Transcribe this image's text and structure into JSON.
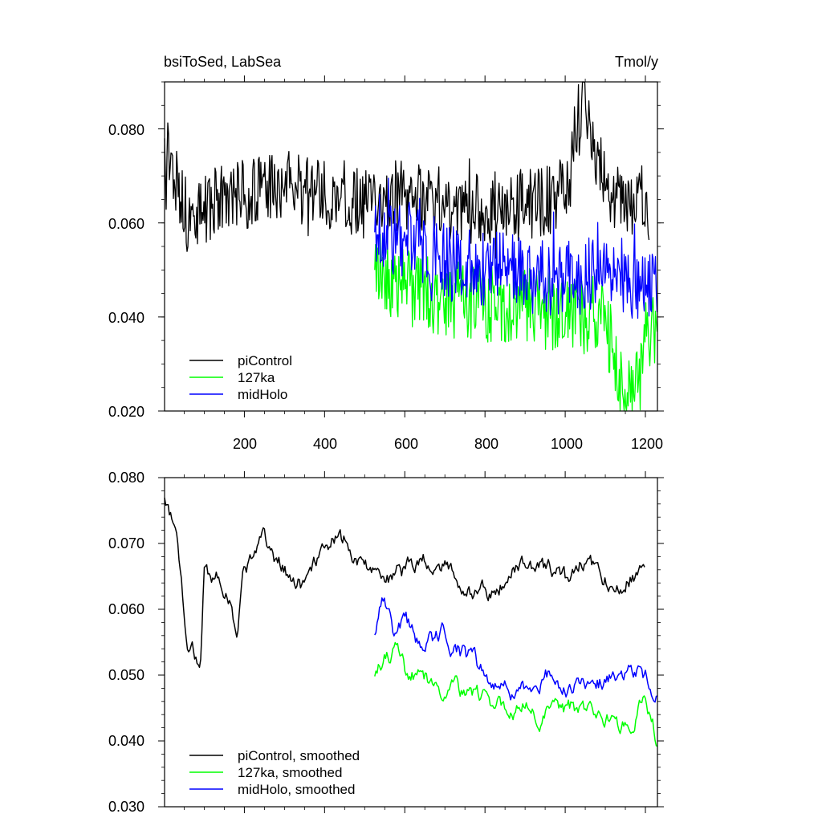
{
  "chart_data": [
    {
      "type": "line",
      "title": "bsiToSed, LabSea",
      "units": "Tmol/y",
      "xlim": [
        1,
        1230
      ],
      "ylim": [
        0.02,
        0.09
      ],
      "xticks": [
        200,
        400,
        600,
        800,
        1000,
        1200
      ],
      "xtick_labels": [
        "200",
        "400",
        "600",
        "800",
        "1000",
        "1200"
      ],
      "yticks": [
        0.02,
        0.04,
        0.06,
        0.08
      ],
      "ytick_labels": [
        "0.020",
        "0.040",
        "0.060",
        "0.080"
      ],
      "legend_position": "bottom-left",
      "series": [
        {
          "name": "piControl",
          "color": "#000000",
          "x_start": 1,
          "x_end": 1210,
          "mean": 0.066,
          "noise": 0.0055,
          "sample_points": [
            [
              1,
              0.078
            ],
            [
              60,
              0.06
            ],
            [
              120,
              0.064
            ],
            [
              200,
              0.066
            ],
            [
              300,
              0.068
            ],
            [
              400,
              0.066
            ],
            [
              500,
              0.064
            ],
            [
              600,
              0.066
            ],
            [
              700,
              0.064
            ],
            [
              800,
              0.063
            ],
            [
              900,
              0.064
            ],
            [
              1000,
              0.066
            ],
            [
              1040,
              0.086
            ],
            [
              1100,
              0.067
            ],
            [
              1210,
              0.064
            ]
          ]
        },
        {
          "name": "127ka",
          "color": "#00ff00",
          "x_start": 525,
          "x_end": 1230,
          "mean": 0.045,
          "noise": 0.006,
          "sample_points": [
            [
              525,
              0.05
            ],
            [
              600,
              0.046
            ],
            [
              700,
              0.044
            ],
            [
              800,
              0.043
            ],
            [
              900,
              0.042
            ],
            [
              1000,
              0.041
            ],
            [
              1100,
              0.04
            ],
            [
              1150,
              0.021
            ],
            [
              1230,
              0.04
            ]
          ]
        },
        {
          "name": "midHolo",
          "color": "#0000ff",
          "x_start": 525,
          "x_end": 1230,
          "mean": 0.05,
          "noise": 0.006,
          "sample_points": [
            [
              525,
              0.058
            ],
            [
              600,
              0.057
            ],
            [
              700,
              0.052
            ],
            [
              800,
              0.05
            ],
            [
              900,
              0.049
            ],
            [
              1000,
              0.048
            ],
            [
              1100,
              0.049
            ],
            [
              1230,
              0.047
            ]
          ]
        }
      ]
    },
    {
      "type": "line",
      "xlim": [
        1,
        1230
      ],
      "ylim": [
        0.03,
        0.08
      ],
      "xticks": [
        200,
        400,
        600,
        800,
        1000,
        1200
      ],
      "yticks": [
        0.03,
        0.04,
        0.05,
        0.06,
        0.07,
        0.08
      ],
      "ytick_labels": [
        "0.030",
        "0.040",
        "0.050",
        "0.060",
        "0.070",
        "0.080"
      ],
      "legend_position": "bottom-left",
      "series": [
        {
          "name": "piControl, smoothed",
          "color": "#000000",
          "x_start": 1,
          "x_end": 1200,
          "sample_points": [
            [
              1,
              0.078
            ],
            [
              30,
              0.071
            ],
            [
              60,
              0.054
            ],
            [
              90,
              0.052
            ],
            [
              100,
              0.066
            ],
            [
              150,
              0.064
            ],
            [
              180,
              0.057
            ],
            [
              200,
              0.066
            ],
            [
              250,
              0.07
            ],
            [
              300,
              0.066
            ],
            [
              350,
              0.063
            ],
            [
              400,
              0.071
            ],
            [
              450,
              0.07
            ],
            [
              500,
              0.066
            ],
            [
              550,
              0.065
            ],
            [
              600,
              0.066
            ],
            [
              650,
              0.068
            ],
            [
              700,
              0.066
            ],
            [
              750,
              0.064
            ],
            [
              800,
              0.062
            ],
            [
              850,
              0.065
            ],
            [
              900,
              0.067
            ],
            [
              950,
              0.066
            ],
            [
              1000,
              0.064
            ],
            [
              1050,
              0.068
            ],
            [
              1100,
              0.065
            ],
            [
              1150,
              0.064
            ],
            [
              1200,
              0.066
            ]
          ]
        },
        {
          "name": "127ka, smoothed",
          "color": "#00ff00",
          "x_start": 525,
          "x_end": 1230,
          "sample_points": [
            [
              525,
              0.049
            ],
            [
              550,
              0.052
            ],
            [
              575,
              0.054
            ],
            [
              600,
              0.05
            ],
            [
              650,
              0.049
            ],
            [
              700,
              0.048
            ],
            [
              750,
              0.047
            ],
            [
              800,
              0.046
            ],
            [
              850,
              0.046
            ],
            [
              900,
              0.045
            ],
            [
              950,
              0.044
            ],
            [
              1000,
              0.045
            ],
            [
              1050,
              0.044
            ],
            [
              1100,
              0.043
            ],
            [
              1150,
              0.042
            ],
            [
              1200,
              0.046
            ],
            [
              1230,
              0.04
            ]
          ]
        },
        {
          "name": "midHolo, smoothed",
          "color": "#0000ff",
          "x_start": 525,
          "x_end": 1230,
          "sample_points": [
            [
              525,
              0.057
            ],
            [
              550,
              0.063
            ],
            [
              575,
              0.055
            ],
            [
              600,
              0.059
            ],
            [
              650,
              0.054
            ],
            [
              700,
              0.056
            ],
            [
              750,
              0.053
            ],
            [
              800,
              0.05
            ],
            [
              850,
              0.048
            ],
            [
              900,
              0.048
            ],
            [
              950,
              0.05
            ],
            [
              1000,
              0.049
            ],
            [
              1050,
              0.048
            ],
            [
              1100,
              0.049
            ],
            [
              1150,
              0.049
            ],
            [
              1200,
              0.05
            ],
            [
              1230,
              0.047
            ]
          ]
        }
      ]
    }
  ]
}
